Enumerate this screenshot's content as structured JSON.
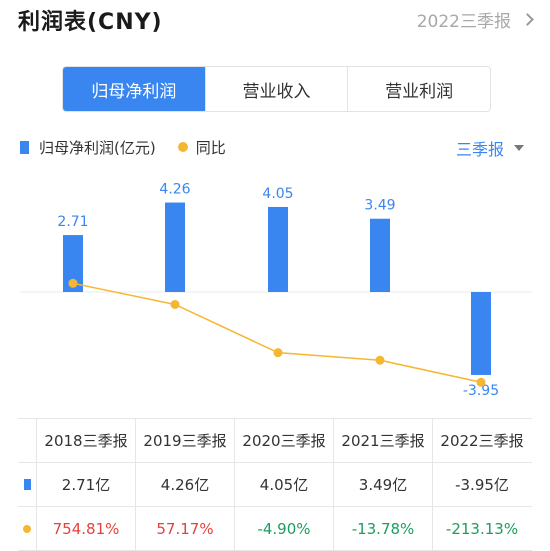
{
  "header": {
    "title": "利润表(CNY)",
    "period": "2022三季报"
  },
  "tabs": [
    {
      "label": "归母净利润",
      "active": true
    },
    {
      "label": "营业收入",
      "active": false
    },
    {
      "label": "营业利润",
      "active": false
    }
  ],
  "legend": {
    "bar_label": "归母净利润(亿元)",
    "line_label": "同比"
  },
  "period_select": "三季报",
  "colors": {
    "accent": "#3a86f0",
    "line": "#f5b731",
    "positive": "#e2443b",
    "negative": "#1b9e5f"
  },
  "chart_data": {
    "type": "bar",
    "categories": [
      "2018三季报",
      "2019三季报",
      "2020三季报",
      "2021三季报",
      "2022三季报"
    ],
    "series": [
      {
        "name": "归母净利润(亿元)",
        "type": "bar",
        "values": [
          2.71,
          4.26,
          4.05,
          3.49,
          -3.95
        ],
        "labels": [
          "2.71",
          "4.26",
          "4.05",
          "3.49",
          "-3.95"
        ]
      },
      {
        "name": "同比",
        "type": "line",
        "values": [
          754.81,
          57.17,
          -4.9,
          -13.78,
          -213.13
        ]
      }
    ]
  },
  "table": {
    "headers": [
      "2018三季报",
      "2019三季报",
      "2020三季报",
      "2021三季报",
      "2022三季报"
    ],
    "profit_row": [
      "2.71亿",
      "4.26亿",
      "4.05亿",
      "3.49亿",
      "-3.95亿"
    ],
    "yoy_row": [
      "754.81%",
      "57.17%",
      "-4.90%",
      "-13.78%",
      "-213.13%"
    ]
  }
}
